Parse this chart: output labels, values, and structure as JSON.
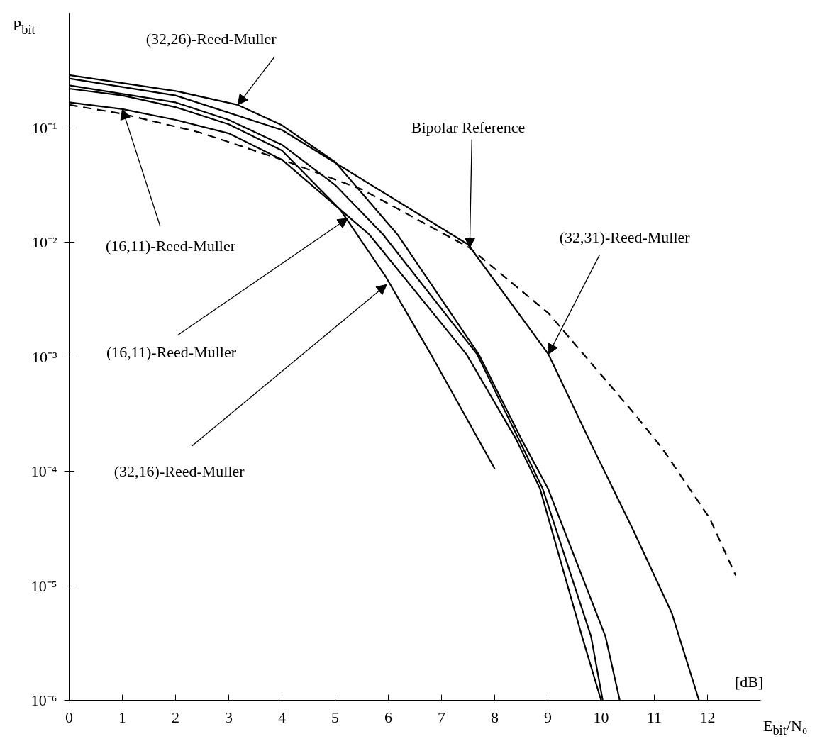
{
  "chart_data": {
    "type": "line",
    "xlabel": "E$_{bit}$/N₀",
    "ylabel": "P$_{bit}$",
    "log": "y",
    "xlim": [
      0,
      13
    ],
    "xticks": [
      0,
      1,
      2,
      3,
      4,
      5,
      6,
      7,
      8,
      9,
      10,
      11,
      12
    ],
    "ylim": [
      1e-06,
      1
    ],
    "yticks": [
      {
        "value": 1e-06,
        "label": "10⁻⁶"
      },
      {
        "value": 1e-05,
        "label": "10⁻⁵"
      },
      {
        "value": 0.0001,
        "label": "10⁻⁴"
      },
      {
        "value": 0.001,
        "label": "10⁻³"
      },
      {
        "value": 0.01,
        "label": "10⁻²"
      },
      {
        "value": 0.1,
        "label": "10⁻¹"
      }
    ],
    "grid": false,
    "series": [
      {
        "color": "#000000",
        "line_style": "dashed",
        "x": [
          0,
          1,
          2.44,
          4,
          5.51,
          7.53,
          9.01,
          10.61,
          11.15,
          12.04,
          12.53
        ],
        "values": [
          0.158,
          0.132,
          0.0912,
          0.0525,
          0.0288,
          0.00891,
          0.0024,
          0.000324,
          0.000158,
          3.89e-05,
          1.23e-05
        ]
      },
      {
        "color": "#000000",
        "line_style": "solid",
        "x": [
          0,
          2,
          3.17,
          4,
          5,
          6.17,
          7.7,
          8.5,
          9.0,
          10.08,
          10.35
        ],
        "values": [
          0.288,
          0.209,
          0.158,
          0.105,
          0.0501,
          0.0117,
          0.00105,
          0.000191,
          7.08e-05,
          3.63e-06,
          1e-06
        ]
      },
      {
        "color": "#000000",
        "line_style": "solid",
        "x": [
          0,
          2,
          4,
          5.5,
          7.5,
          9.01,
          9.81,
          10.61,
          11.33,
          11.84
        ],
        "values": [
          0.269,
          0.191,
          0.0955,
          0.0355,
          0.00955,
          0.00105,
          0.000174,
          3.02e-05,
          5.75e-06,
          1e-06
        ]
      },
      {
        "color": "#000000",
        "line_style": "solid",
        "x": [
          0,
          2,
          3,
          4,
          5,
          5.9,
          7.67,
          8.45,
          8.9,
          9.81,
          10.03
        ],
        "values": [
          0.234,
          0.166,
          0.117,
          0.0708,
          0.0316,
          0.0117,
          0.00105,
          0.000191,
          7.08e-05,
          3.63e-06,
          1e-06
        ]
      },
      {
        "color": "#000000",
        "line_style": "solid",
        "x": [
          0,
          1,
          2,
          3,
          4,
          5.64,
          7.47,
          8.4,
          8.85,
          9.64,
          10.0
        ],
        "values": [
          0.166,
          0.145,
          0.117,
          0.0891,
          0.0525,
          0.0117,
          0.00105,
          0.000191,
          7.08e-05,
          3.63e-06,
          1e-06
        ]
      },
      {
        "color": "#000000",
        "line_style": "solid",
        "x": [
          0,
          1,
          2,
          3,
          4,
          5.1,
          5.95,
          6.8,
          8.0
        ],
        "values": [
          0.219,
          0.191,
          0.151,
          0.107,
          0.0631,
          0.0191,
          0.00501,
          0.00105,
          0.000105
        ]
      }
    ],
    "annotations": [
      {
        "text": "(32,26)-Reed-Muller",
        "x": 3.17,
        "y": 0.158
      },
      {
        "text": "Bipolar Reference",
        "x": 7.53,
        "y": 0.00891
      },
      {
        "text": "(32,31)-Reed-Muller",
        "x": 9.01,
        "y": 0.00105
      },
      {
        "text": "(16,11)-Reed-Muller",
        "x": 1,
        "y": 0.145
      },
      {
        "text": "(16,11)-Reed-Muller",
        "x": 5.24,
        "y": 0.0162
      },
      {
        "text": "(32,16)-Reed-Muller",
        "x": 5.97,
        "y": 0.00427
      },
      "[dB]"
    ]
  }
}
